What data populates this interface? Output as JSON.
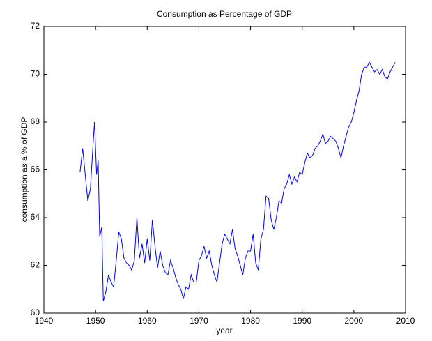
{
  "chart_data": {
    "type": "line",
    "title": "Consumption as Percentage of GDP",
    "x_label": "year",
    "y_label": "consumption as a % of GDP",
    "xlim": [
      1940,
      2010
    ],
    "xticks": [
      1940,
      1950,
      1960,
      1970,
      1980,
      1990,
      2000,
      2010
    ],
    "ylim": [
      60,
      72
    ],
    "yticks": [
      60,
      62,
      64,
      66,
      68,
      70,
      72
    ],
    "grid": false,
    "series": [
      {
        "name": "consumption",
        "color": "#0000ff",
        "x": [
          1947.0,
          1947.5,
          1948.0,
          1948.5,
          1949.0,
          1949.5,
          1949.8,
          1950.2,
          1950.5,
          1950.8,
          1951.2,
          1951.5,
          1952.0,
          1952.5,
          1953.0,
          1953.5,
          1954.0,
          1954.5,
          1955.0,
          1955.5,
          1956.0,
          1956.5,
          1957.0,
          1957.5,
          1958.0,
          1958.5,
          1959.0,
          1959.5,
          1960.0,
          1960.5,
          1961.0,
          1961.5,
          1962.0,
          1962.5,
          1963.0,
          1963.5,
          1964.0,
          1964.5,
          1965.0,
          1965.5,
          1966.0,
          1966.5,
          1967.0,
          1967.5,
          1968.0,
          1968.5,
          1969.0,
          1969.5,
          1970.0,
          1970.5,
          1971.0,
          1971.5,
          1972.0,
          1972.5,
          1973.0,
          1973.5,
          1974.0,
          1974.5,
          1975.0,
          1975.5,
          1976.0,
          1976.5,
          1977.0,
          1977.5,
          1978.0,
          1978.5,
          1979.0,
          1979.5,
          1980.0,
          1980.5,
          1981.0,
          1981.5,
          1982.0,
          1982.5,
          1983.0,
          1983.5,
          1984.0,
          1984.5,
          1985.0,
          1985.5,
          1986.0,
          1986.5,
          1987.0,
          1987.5,
          1988.0,
          1988.5,
          1989.0,
          1989.5,
          1990.0,
          1990.5,
          1991.0,
          1991.5,
          1992.0,
          1992.5,
          1993.0,
          1993.5,
          1994.0,
          1994.5,
          1995.0,
          1995.5,
          1996.0,
          1996.5,
          1997.0,
          1997.5,
          1998.0,
          1998.5,
          1999.0,
          1999.5,
          2000.0,
          2000.5,
          2001.0,
          2001.5,
          2002.0,
          2002.5,
          2003.0,
          2003.5,
          2004.0,
          2004.5,
          2005.0,
          2005.5,
          2006.0,
          2006.5,
          2007.0,
          2007.5,
          2008.0
        ],
        "values": [
          65.9,
          66.9,
          65.8,
          64.7,
          65.2,
          67.0,
          68.0,
          65.8,
          66.4,
          63.2,
          63.6,
          60.5,
          60.9,
          61.6,
          61.3,
          61.1,
          62.2,
          63.4,
          63.1,
          62.3,
          62.1,
          62.0,
          61.8,
          62.2,
          64.0,
          62.3,
          62.9,
          62.1,
          63.1,
          62.2,
          63.9,
          62.8,
          61.9,
          62.6,
          62.0,
          61.7,
          61.6,
          62.2,
          61.9,
          61.5,
          61.2,
          61.0,
          60.6,
          61.1,
          61.0,
          61.6,
          61.3,
          61.3,
          62.2,
          62.4,
          62.8,
          62.3,
          62.6,
          62.0,
          61.6,
          61.3,
          62.1,
          62.9,
          63.3,
          63.1,
          62.9,
          63.5,
          62.7,
          62.4,
          62.0,
          61.6,
          62.3,
          62.6,
          62.6,
          63.3,
          62.1,
          61.8,
          63.1,
          63.5,
          64.9,
          64.8,
          63.9,
          63.5,
          64.0,
          64.7,
          64.6,
          65.2,
          65.4,
          65.8,
          65.4,
          65.7,
          65.5,
          65.9,
          65.8,
          66.3,
          66.7,
          66.5,
          66.6,
          66.9,
          67.0,
          67.2,
          67.5,
          67.1,
          67.2,
          67.4,
          67.3,
          67.2,
          66.9,
          66.5,
          67.0,
          67.4,
          67.8,
          68.0,
          68.4,
          68.9,
          69.3,
          70.0,
          70.3,
          70.3,
          70.5,
          70.3,
          70.1,
          70.2,
          70.0,
          70.2,
          69.9,
          69.8,
          70.1,
          70.3,
          70.5
        ]
      }
    ]
  }
}
